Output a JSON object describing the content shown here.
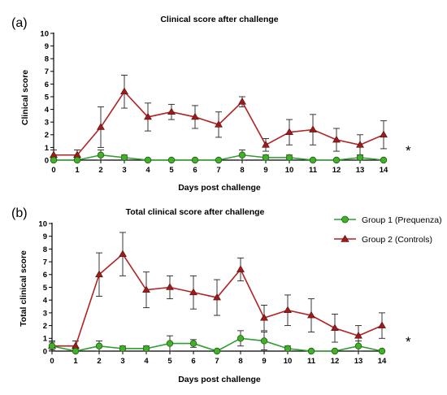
{
  "colors": {
    "group1": "#43b02a",
    "group1_line": "#2e9e2e",
    "group2": "#9b1c1c",
    "group2_line": "#b22222"
  },
  "legend": [
    {
      "name": "Group 1 (Prequenza)",
      "marker": "circle",
      "color": "#43b02a"
    },
    {
      "name": "Group 2 (Controls)",
      "marker": "triangle",
      "color": "#9b1c1c"
    }
  ],
  "chart_data": [
    {
      "panel": "(a)",
      "type": "line",
      "title": "Clinical score after challenge",
      "xlabel": "Days post challenge",
      "ylabel": "Clinical score",
      "x": [
        0,
        1,
        2,
        3,
        4,
        5,
        6,
        7,
        8,
        9,
        10,
        11,
        12,
        13,
        14
      ],
      "xlim": [
        0,
        14
      ],
      "ylim": [
        0,
        10
      ],
      "yticks": [
        0,
        1,
        2,
        3,
        4,
        5,
        6,
        7,
        8,
        9,
        10
      ],
      "grid": false,
      "significance_marker": "*",
      "series": [
        {
          "name": "Group 1 (Prequenza)",
          "values": [
            0.0,
            0.0,
            0.4,
            0.2,
            0.0,
            0.0,
            0.0,
            0.0,
            0.4,
            0.2,
            0.2,
            0.0,
            0.0,
            0.2,
            0.0
          ],
          "errors": [
            0.2,
            0.2,
            0.4,
            0.2,
            0.0,
            0.0,
            0.0,
            0.0,
            0.4,
            0.2,
            0.2,
            0.0,
            0.0,
            0.2,
            0.0
          ]
        },
        {
          "name": "Group 2 (Controls)",
          "values": [
            0.4,
            0.4,
            2.6,
            5.4,
            3.4,
            3.8,
            3.4,
            2.8,
            4.6,
            1.2,
            2.2,
            2.4,
            1.6,
            1.2,
            2.0
          ],
          "errors": [
            0.4,
            0.4,
            1.6,
            1.3,
            1.1,
            0.6,
            0.9,
            1.0,
            0.4,
            0.5,
            1.0,
            1.2,
            0.9,
            0.8,
            1.1
          ]
        }
      ]
    },
    {
      "panel": "(b)",
      "type": "line",
      "title": "Total clinical score after challenge",
      "xlabel": "Days post challenge",
      "ylabel": "Total clinical score",
      "x": [
        0,
        1,
        2,
        3,
        4,
        5,
        6,
        7,
        8,
        9,
        10,
        11,
        12,
        13,
        14
      ],
      "xlim": [
        0,
        14
      ],
      "ylim": [
        0,
        10
      ],
      "yticks": [
        0,
        1,
        2,
        3,
        4,
        5,
        6,
        7,
        8,
        9,
        10
      ],
      "grid": false,
      "legend_position": "top-right",
      "significance_marker": "*",
      "series": [
        {
          "name": "Group 1 (Prequenza)",
          "values": [
            0.4,
            0.0,
            0.4,
            0.2,
            0.2,
            0.6,
            0.6,
            0.0,
            1.0,
            0.8,
            0.2,
            0.0,
            0.0,
            0.4,
            0.0
          ],
          "errors": [
            0.3,
            0.2,
            0.4,
            0.2,
            0.2,
            0.6,
            0.3,
            0.0,
            0.6,
            0.7,
            0.2,
            0.0,
            0.0,
            0.4,
            0.0
          ]
        },
        {
          "name": "Group 2 (Controls)",
          "values": [
            0.4,
            0.4,
            6.0,
            7.6,
            4.8,
            5.0,
            4.6,
            4.2,
            6.4,
            2.6,
            3.2,
            2.8,
            1.8,
            1.2,
            2.0
          ],
          "errors": [
            0.4,
            0.4,
            1.7,
            1.7,
            1.4,
            0.9,
            1.3,
            1.4,
            0.9,
            1.0,
            1.2,
            1.3,
            1.1,
            0.8,
            1.0
          ]
        }
      ]
    }
  ]
}
